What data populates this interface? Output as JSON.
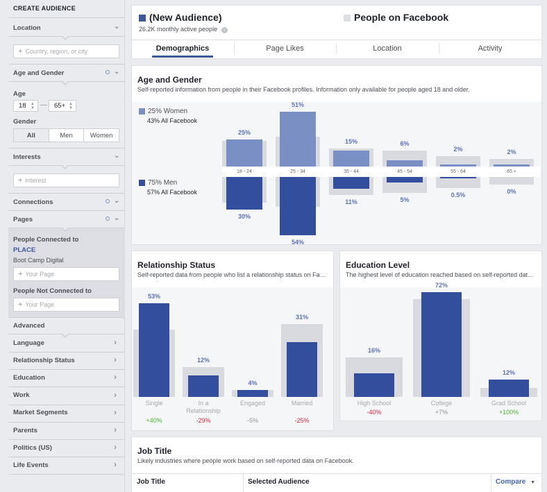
{
  "sidebar": {
    "title": "CREATE AUDIENCE",
    "location": {
      "label": "Location",
      "placeholder": "Country, region, or city"
    },
    "age_gender": {
      "label": "Age and Gender",
      "age_label": "Age",
      "age_min": "18",
      "age_max": "65+",
      "gender_label": "Gender",
      "gender_options": [
        "All",
        "Men",
        "Women"
      ],
      "gender_selected": "All"
    },
    "interests": {
      "label": "Interests",
      "placeholder": "Interest"
    },
    "connections": {
      "label": "Connections"
    },
    "pages": {
      "label": "Pages",
      "connected_label": "People Connected to",
      "connected_place": "PLACE",
      "connected_page": "Boot Camp Digital",
      "your_page_placeholder": "Your Page",
      "not_connected_label": "People Not Connected to",
      "not_connected_placeholder": "Your Page"
    },
    "advanced": {
      "label": "Advanced"
    },
    "items": [
      "Language",
      "Relationship Status",
      "Education",
      "Work",
      "Market Segments",
      "Parents",
      "Politics (US)",
      "Life Events"
    ]
  },
  "header": {
    "audience_name": "(New Audience)",
    "audience_size": "26.2K monthly active people",
    "compare_name": "People on Facebook",
    "tabs": [
      "Demographics",
      "Page Likes",
      "Location",
      "Activity"
    ],
    "active_tab": "Demographics"
  },
  "age_gender": {
    "title": "Age and Gender",
    "subtitle": "Self-reported information from people in their Facebook profiles. Information only available for people aged 18 and older.",
    "women_pct": "25% Women",
    "women_fb": "43% All Facebook",
    "men_pct": "75% Men",
    "men_fb": "57% All Facebook"
  },
  "relationship": {
    "title": "Relationship Status",
    "subtitle": "Self-reported data from people who list a relationship status on Facebook."
  },
  "education": {
    "title": "Education Level",
    "subtitle": "The highest level of education reached based on self-reported data on Facebook."
  },
  "job": {
    "title": "Job Title",
    "subtitle": "Likely industries where people work based on self-reported data on Facebook.",
    "col_job": "Job Title",
    "col_audience": "Selected Audience",
    "col_compare": "Compare"
  },
  "colors": {
    "brand": "#3b5998",
    "women": "#7a8fc4",
    "men": "#344e9e",
    "positive": "#42b72a",
    "negative": "#d8253d"
  },
  "chart_data": [
    {
      "type": "bar",
      "title": "Age and Gender",
      "categories": [
        "18 - 24",
        "25 - 34",
        "35 - 44",
        "45 - 54",
        "55 - 64",
        "65 +"
      ],
      "series": [
        {
          "name": "Women",
          "values": [
            25,
            51,
            15,
            6,
            2,
            2
          ]
        },
        {
          "name": "Men",
          "values": [
            30,
            54,
            11,
            5,
            0.5,
            0
          ]
        }
      ],
      "all_facebook": {
        "women": [
          24,
          28,
          17,
          15,
          10,
          7
        ],
        "men": [
          24,
          28,
          17,
          15,
          10,
          7
        ]
      }
    },
    {
      "type": "bar",
      "title": "Relationship Status",
      "categories": [
        "Single",
        "In a Relationship",
        "Engaged",
        "Married"
      ],
      "values": [
        53,
        12,
        4,
        31
      ],
      "values_labels": [
        "53%",
        "12%",
        "4%",
        "31%"
      ],
      "comparison": [
        38,
        17,
        4,
        41
      ],
      "diffs": [
        "+40%",
        "-29%",
        "-5%",
        "-25%"
      ],
      "diff_signs": [
        "pos",
        "neg",
        "neu",
        "neg"
      ]
    },
    {
      "type": "bar",
      "title": "Education Level",
      "categories": [
        "High School",
        "College",
        "Grad School"
      ],
      "values": [
        16,
        72,
        12
      ],
      "values_labels": [
        "16%",
        "72%",
        "12%"
      ],
      "comparison": [
        27,
        67,
        6
      ],
      "diffs": [
        "-40%",
        "+7%",
        "+100%"
      ],
      "diff_signs": [
        "neg",
        "neu",
        "pos"
      ]
    }
  ]
}
